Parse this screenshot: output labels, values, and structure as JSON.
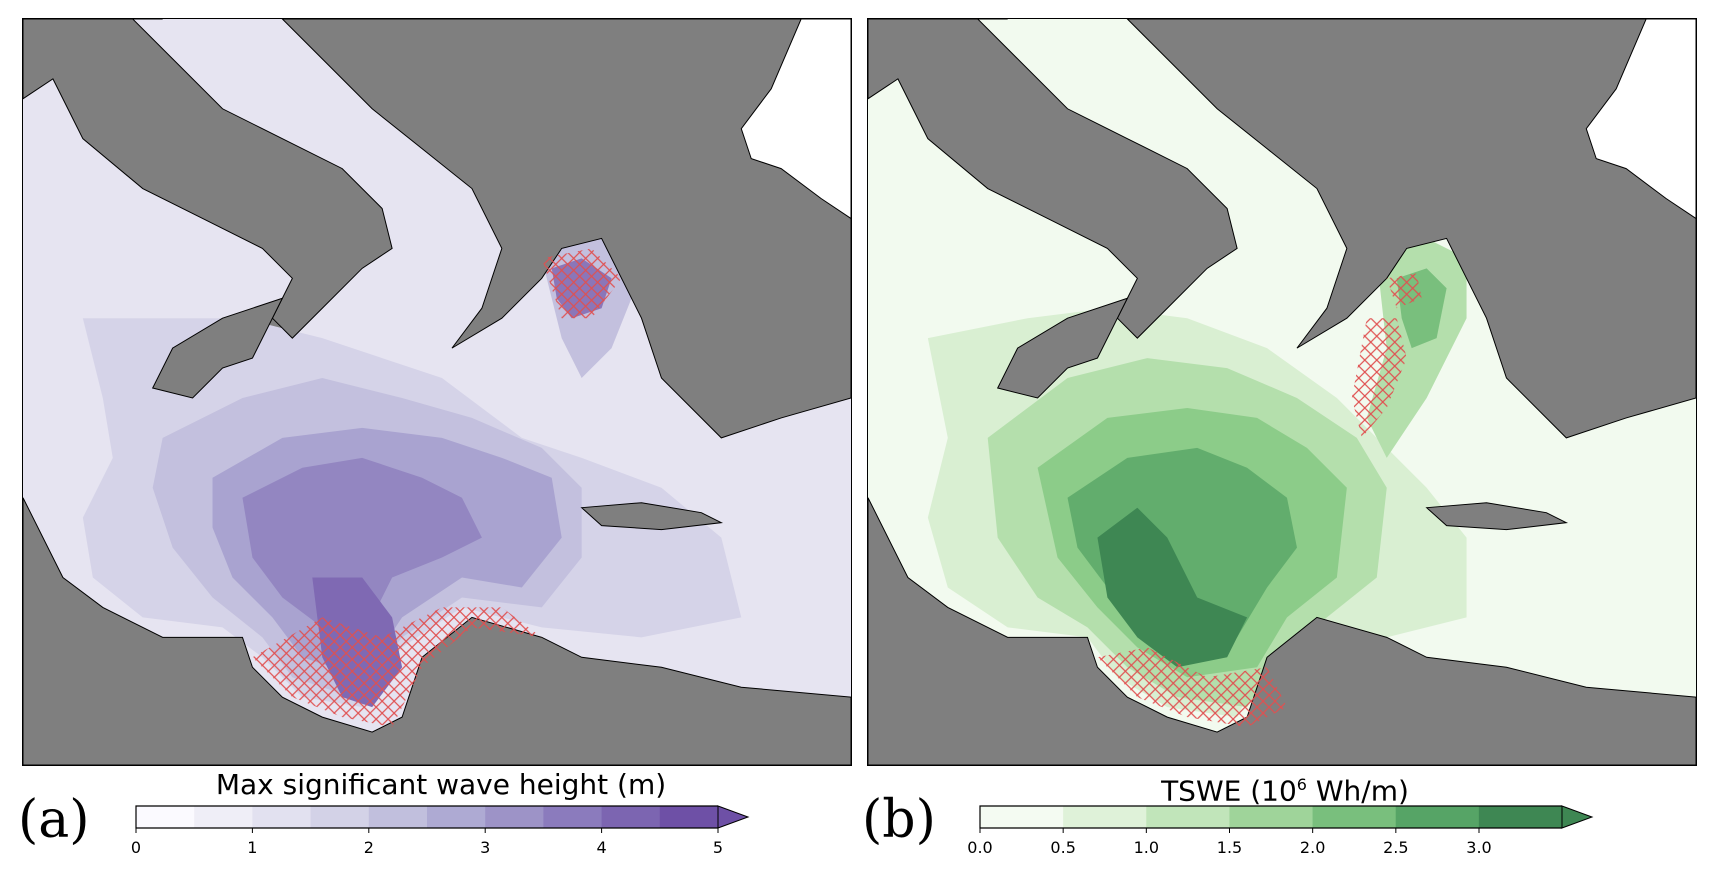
{
  "panel_a": {
    "letter": "(a)",
    "colorbar_label": "Max significant wave height (m)",
    "colorbar_ticks": [
      "0",
      "1",
      "2",
      "3",
      "4",
      "5"
    ],
    "colormap": [
      "#fbfaff",
      "#efeef7",
      "#e2e1f0",
      "#d3d2e7",
      "#c1bfdd",
      "#aeaad3",
      "#9d93c7",
      "#8b7bbd",
      "#7c65b1",
      "#6e50a6"
    ],
    "extend": "max"
  },
  "panel_b": {
    "letter": "(b)",
    "colorbar_label_main": "TSWE (10",
    "colorbar_label_sup": "6",
    "colorbar_label_tail": " Wh/m)",
    "colorbar_ticks": [
      "0.0",
      "0.5",
      "1.0",
      "1.5",
      "2.0",
      "2.5",
      "3.0"
    ],
    "colormap": [
      "#f4fbf2",
      "#dff2d9",
      "#c1e5ba",
      "#9fd49a",
      "#79bf7d",
      "#56a466",
      "#3e8753"
    ],
    "extend": "max"
  },
  "land_color": "#7f7f7f",
  "hatch_color": "#e05050"
}
